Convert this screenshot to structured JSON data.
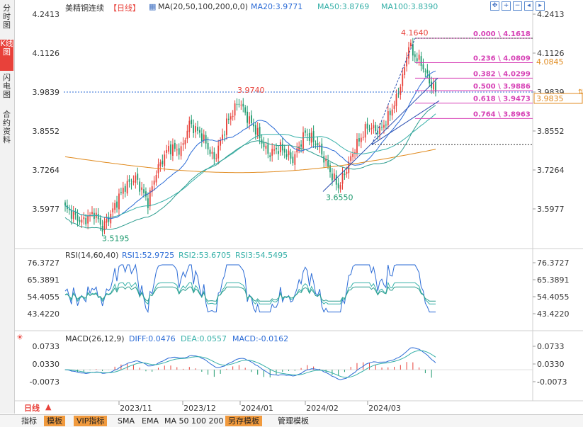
{
  "sidebar": [
    {
      "label": "分时图",
      "active": false
    },
    {
      "label": "K线图",
      "active": true
    },
    {
      "label": "闪电图",
      "active": false
    },
    {
      "label": "合约资料",
      "active": false
    }
  ],
  "header": {
    "title": "美精铜连续",
    "period": "【日线】",
    "ma_label": "MA(20,50,100,200,0,0)",
    "ma20": "MA20:3.9771",
    "ma50": "MA50:3.8769",
    "ma100": "MA100:3.8390"
  },
  "rsi_header": {
    "label": "RSI(14,60,40)",
    "rsi1": "RSI1:52.9725",
    "rsi2": "RSI2:53.6705",
    "rsi3": "RSI3:54.5495"
  },
  "macd_header": {
    "label": "MACD(26,12,9)",
    "diff": "DIFF:0.0476",
    "dea": "DEA:0.0557",
    "macd": "MACD:-0.0162"
  },
  "price_axis": [
    "4.2413",
    "4.1126",
    "3.9839",
    "3.8552",
    "3.7264",
    "3.5977"
  ],
  "rsi_axis": [
    "76.3727",
    "65.3891",
    "54.4055",
    "43.4220"
  ],
  "macd_axis": [
    "0.0733",
    "0.0330",
    "-0.0073"
  ],
  "price_tags": {
    "current": "3.9835",
    "marker": "4.0845"
  },
  "annotations": {
    "high_left": "3.9740",
    "low_left": "3.5195",
    "low_mid": "3.6550",
    "high_right": "4.1640"
  },
  "fib_levels": [
    {
      "label": "0.000 \\ 4.1618",
      "value": 4.1618
    },
    {
      "label": "0.236 \\ 4.0809",
      "value": 4.0809
    },
    {
      "label": "0.382 \\ 4.0299",
      "value": 4.0299
    },
    {
      "label": "0.500 \\ 3.9886",
      "value": 3.9886
    },
    {
      "label": "0.618 \\ 3.9473",
      "value": 3.9473
    },
    {
      "label": "0.764 \\ 3.8963",
      "value": 3.8963
    }
  ],
  "time_axis": [
    "2023/11",
    "2023/12",
    "2024/01",
    "2024/02",
    "2024/03"
  ],
  "period_button": "日线",
  "bottom_tabs": [
    "指标",
    "模板",
    "VIP指标",
    "SMA",
    "EMA",
    "MA 50 100 200",
    "另存模板",
    "管理模板"
  ],
  "colors": {
    "up": "#e8413a",
    "down": "#1e9a6e",
    "ma20": "#2b6bd6",
    "ma50": "#36b0a8",
    "ma100": "#e08a1e",
    "fib": "#d63fb5",
    "accent": "#e8413a"
  },
  "chart_data": {
    "type": "candlestick",
    "price_range": [
      3.52,
      4.24
    ],
    "levels": [
      4.1618,
      4.0809,
      4.0299,
      3.9886,
      3.9473,
      3.8963
    ],
    "rsi_range": [
      43.42,
      76.37
    ],
    "macd_range": [
      -0.0073,
      0.0733
    ]
  }
}
